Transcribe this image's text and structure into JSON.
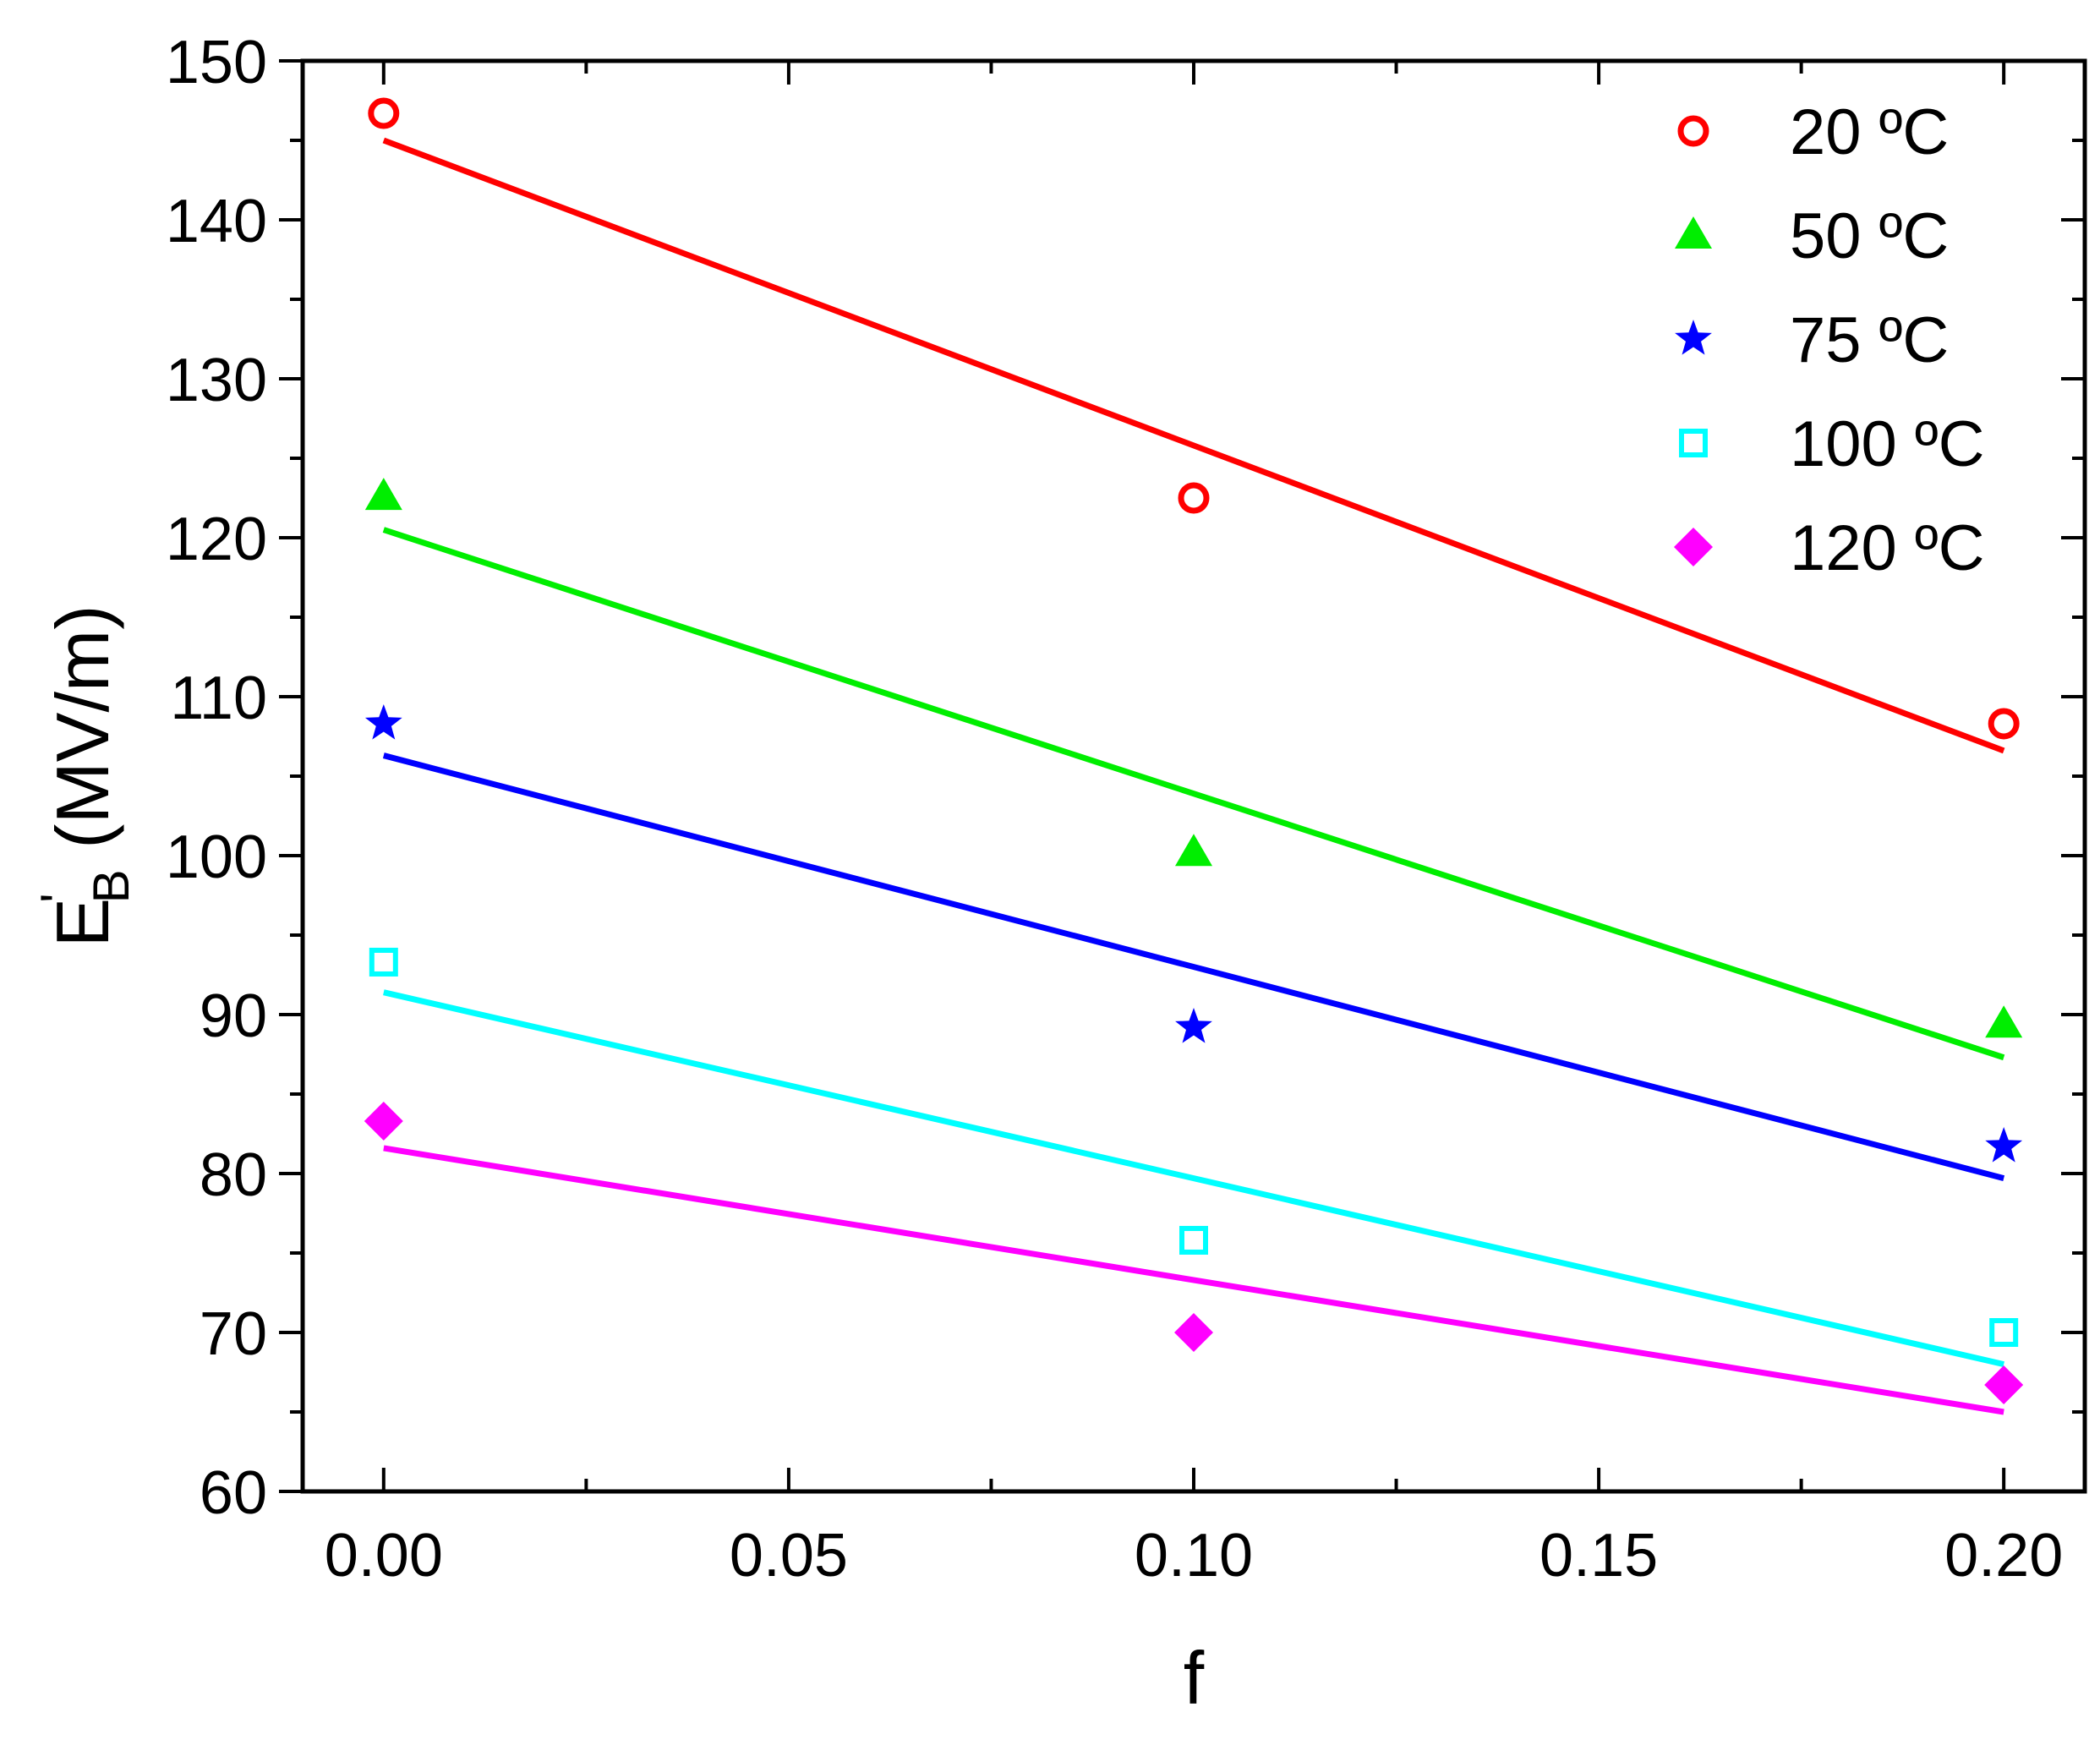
{
  "chart_data": {
    "type": "scatter",
    "title": "",
    "xlabel": "f",
    "ylabel": {
      "main": "E",
      "prime": "'",
      "sub": "B",
      "unit": " (MV/m)"
    },
    "xlim": [
      -0.01,
      0.21
    ],
    "ylim": [
      60,
      150
    ],
    "xticks": [
      0.0,
      0.05,
      0.1,
      0.15,
      0.2
    ],
    "xtick_labels": [
      "0.00",
      "0.05",
      "0.10",
      "0.15",
      "0.20"
    ],
    "yticks": [
      60,
      70,
      80,
      90,
      100,
      110,
      120,
      130,
      140,
      150
    ],
    "ytick_labels": [
      "60",
      "70",
      "80",
      "90",
      "100",
      "110",
      "120",
      "130",
      "140",
      "150"
    ],
    "grid": false,
    "legend_position": "top-right",
    "series": [
      {
        "name": "20 ºC",
        "label_num": "20",
        "label_unit": "ºC",
        "color": "#ff0000",
        "marker": "circle-open",
        "x": [
          0.0,
          0.1,
          0.2
        ],
        "y": [
          146.7,
          122.5,
          108.3
        ],
        "fit": [
          145.0,
          106.6
        ]
      },
      {
        "name": "50 ºC",
        "label_num": "50",
        "label_unit": "ºC",
        "color": "#00ee00",
        "marker": "triangle",
        "x": [
          0.0,
          0.1,
          0.2
        ],
        "y": [
          122.6,
          100.2,
          89.4
        ],
        "fit": [
          120.5,
          87.3
        ]
      },
      {
        "name": "75 ºC",
        "label_num": "75",
        "label_unit": "ºC",
        "color": "#0000ff",
        "marker": "star",
        "x": [
          0.0,
          0.1,
          0.2
        ],
        "y": [
          108.3,
          89.2,
          81.7
        ],
        "fit": [
          106.3,
          79.7
        ]
      },
      {
        "name": "100 ºC",
        "label_num": "100",
        "label_unit": "ºC",
        "color": "#00ffff",
        "marker": "square-open",
        "x": [
          0.0,
          0.1,
          0.2
        ],
        "y": [
          93.3,
          75.8,
          70.0
        ],
        "fit": [
          91.4,
          68.0
        ]
      },
      {
        "name": "120 ºC",
        "label_num": "120",
        "label_unit": "ºC",
        "color": "#ff00ff",
        "marker": "diamond",
        "x": [
          0.0,
          0.1,
          0.2
        ],
        "y": [
          83.3,
          70.0,
          66.7
        ],
        "fit": [
          81.6,
          65.0
        ]
      }
    ]
  }
}
